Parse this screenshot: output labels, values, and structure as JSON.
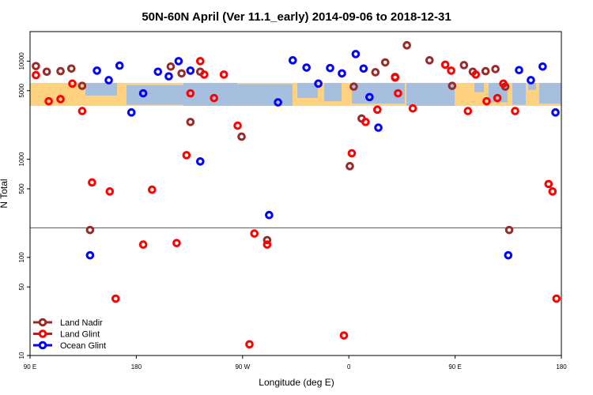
{
  "chart_data": {
    "type": "scatter",
    "title": "50N-60N April (Ver 11.1_early)   2014-09-06 to 2018-12-31",
    "xlabel": "Longitude (deg E)",
    "ylabel": "N Total",
    "y_scale": "log",
    "xlim": [
      -90,
      180
    ],
    "ylim": [
      10,
      20000
    ],
    "x_ticks": [
      {
        "value": -90,
        "label": "90 E"
      },
      {
        "value": -36,
        "label": "180"
      },
      {
        "value": 18,
        "label": "90 W"
      },
      {
        "value": 72,
        "label": "0"
      },
      {
        "value": 126,
        "label": "90 E"
      },
      {
        "value": 180,
        "label": "180"
      }
    ],
    "y_ticks": [
      {
        "value": 10,
        "label": "10"
      },
      {
        "value": 50,
        "label": "50"
      },
      {
        "value": 100,
        "label": "100"
      },
      {
        "value": 500,
        "label": "500"
      },
      {
        "value": 1000,
        "label": "1000"
      },
      {
        "value": 5000,
        "label": "5000"
      },
      {
        "value": 10000,
        "label": "10000"
      }
    ],
    "reference_line": 200,
    "map_band": {
      "ymin": 3500,
      "ymax": 6000,
      "land_color": "#ffd27f",
      "ocean_color": "#a7bfdf"
    },
    "legend_position": "bottom-left",
    "series": [
      {
        "name": "Land Nadir",
        "color": "#9a2a2a",
        "points": [
          [
            -87.0,
            8900
          ],
          [
            -81.5,
            7800
          ],
          [
            -74.5,
            7900
          ],
          [
            -69.0,
            8400
          ],
          [
            -63.5,
            5600
          ],
          [
            -59.5,
            190
          ],
          [
            -18.5,
            8800
          ],
          [
            -13.0,
            7500
          ],
          [
            -8.5,
            2400
          ],
          [
            -3.5,
            7800
          ],
          [
            17.5,
            1700
          ],
          [
            30.5,
            150
          ],
          [
            72.5,
            850
          ],
          [
            74.5,
            5500
          ],
          [
            78.5,
            2600
          ],
          [
            85.5,
            7700
          ],
          [
            90.5,
            9700
          ],
          [
            95.5,
            6900
          ],
          [
            101.5,
            14500
          ],
          [
            113.0,
            10200
          ],
          [
            124.5,
            5600
          ],
          [
            130.5,
            9100
          ],
          [
            135.0,
            7800
          ],
          [
            141.5,
            7900
          ],
          [
            146.5,
            8300
          ],
          [
            151.5,
            5500
          ],
          [
            153.5,
            190
          ]
        ]
      },
      {
        "name": "Land Glint",
        "color": "#ff0000",
        "points": [
          [
            -87.0,
            7200
          ],
          [
            -80.5,
            3900
          ],
          [
            -74.5,
            4100
          ],
          [
            -68.5,
            5900
          ],
          [
            -63.5,
            3100
          ],
          [
            -58.5,
            580
          ],
          [
            -49.5,
            470
          ],
          [
            -46.5,
            38
          ],
          [
            -32.5,
            135
          ],
          [
            -28.0,
            490
          ],
          [
            -15.5,
            140
          ],
          [
            -10.5,
            1100
          ],
          [
            -8.5,
            4700
          ],
          [
            -1.5,
            7300
          ],
          [
            -3.5,
            10000
          ],
          [
            3.5,
            4200
          ],
          [
            8.5,
            7300
          ],
          [
            15.5,
            2200
          ],
          [
            21.5,
            13
          ],
          [
            24.0,
            175
          ],
          [
            30.5,
            135
          ],
          [
            69.5,
            16
          ],
          [
            73.5,
            1150
          ],
          [
            80.5,
            2400
          ],
          [
            86.5,
            3200
          ],
          [
            95.5,
            6800
          ],
          [
            97.0,
            4700
          ],
          [
            104.5,
            3300
          ],
          [
            121.0,
            9200
          ],
          [
            124.0,
            8000
          ],
          [
            132.5,
            3100
          ],
          [
            136.5,
            7300
          ],
          [
            142.0,
            3900
          ],
          [
            147.5,
            4200
          ],
          [
            150.5,
            5900
          ],
          [
            156.5,
            3100
          ],
          [
            173.5,
            560
          ],
          [
            175.5,
            470
          ],
          [
            177.5,
            38
          ]
        ]
      },
      {
        "name": "Ocean Glint",
        "color": "#0000ff",
        "points": [
          [
            -59.5,
            105
          ],
          [
            -56.0,
            8000
          ],
          [
            -50.0,
            6400
          ],
          [
            -44.5,
            9000
          ],
          [
            -38.5,
            3000
          ],
          [
            -32.5,
            4700
          ],
          [
            -25.0,
            7800
          ],
          [
            -19.5,
            7000
          ],
          [
            -14.5,
            10000
          ],
          [
            -8.5,
            8000
          ],
          [
            -3.5,
            950
          ],
          [
            31.5,
            270
          ],
          [
            36.0,
            3800
          ],
          [
            43.5,
            10200
          ],
          [
            50.5,
            8600
          ],
          [
            56.5,
            5900
          ],
          [
            62.5,
            8500
          ],
          [
            68.5,
            7500
          ],
          [
            75.5,
            11800
          ],
          [
            79.5,
            8400
          ],
          [
            82.5,
            4300
          ],
          [
            87.0,
            2100
          ],
          [
            153.0,
            105
          ],
          [
            158.5,
            8100
          ],
          [
            164.5,
            6400
          ],
          [
            170.5,
            8800
          ],
          [
            177.0,
            3000
          ]
        ]
      }
    ]
  }
}
